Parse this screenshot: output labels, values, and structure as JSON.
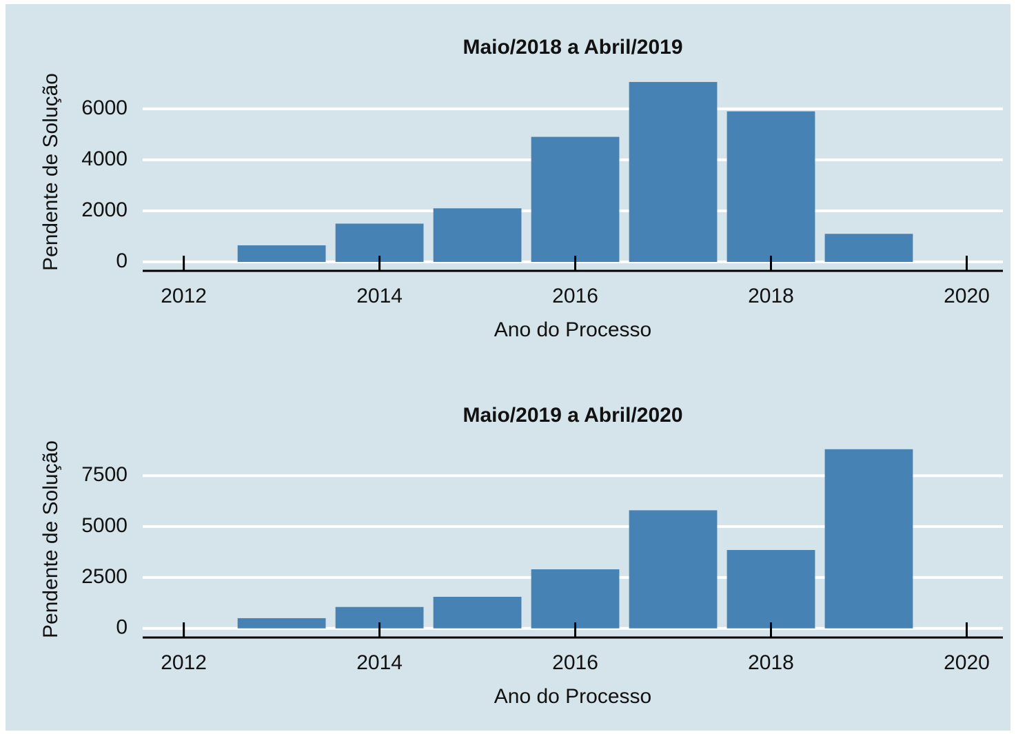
{
  "chart_data": [
    {
      "type": "bar",
      "title": "Maio/2018 a Abril/2019",
      "xlabel": "Ano do Processo",
      "ylabel": "Pendente de Solução",
      "x": [
        2013,
        2014,
        2015,
        2016,
        2017,
        2018,
        2019
      ],
      "values": [
        650,
        1500,
        2100,
        4900,
        7050,
        5900,
        1100
      ],
      "color": "#4682b4",
      "xlim": [
        2011.58,
        2020.37
      ],
      "ylim": [
        -350,
        7400
      ],
      "xticks": [
        2012,
        2014,
        2016,
        2018,
        2020
      ],
      "yticks": [
        0,
        2000,
        4000,
        6000
      ],
      "grid": true
    },
    {
      "type": "bar",
      "title": "Maio/2019 a Abril/2020",
      "xlabel": "Ano do Processo",
      "ylabel": "Pendente de Solução",
      "x": [
        2013,
        2014,
        2015,
        2016,
        2017,
        2018,
        2019
      ],
      "values": [
        500,
        1050,
        1550,
        2900,
        5800,
        3850,
        8800
      ],
      "color": "#4682b4",
      "xlim": [
        2011.58,
        2020.37
      ],
      "ylim": [
        -450,
        9200
      ],
      "xticks": [
        2012,
        2014,
        2016,
        2018,
        2020
      ],
      "yticks": [
        0,
        2500,
        5000,
        7500
      ],
      "grid": true
    }
  ]
}
